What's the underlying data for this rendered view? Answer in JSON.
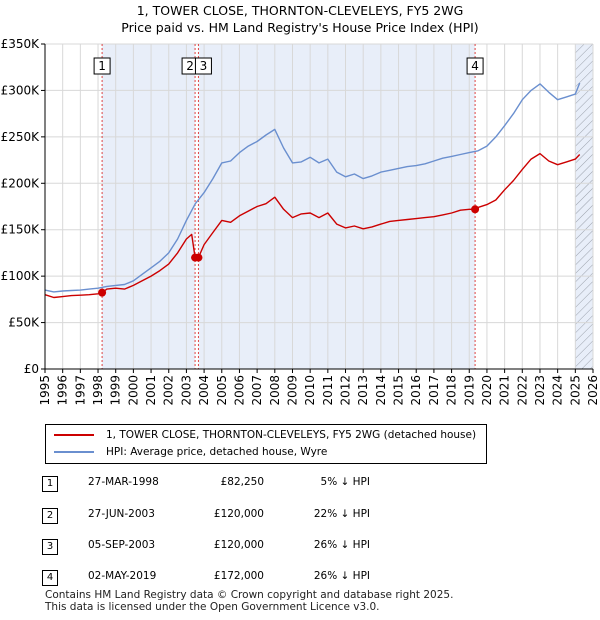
{
  "title_line1": "1, TOWER CLOSE, THORNTON-CLEVELEYS, FY5 2WG",
  "title_line2": "Price paid vs. HM Land Registry's House Price Index (HPI)",
  "colors": {
    "price": "#cc0000",
    "hpi": "#6a8fcf",
    "shade": "#e8eef9",
    "marker": "#cc0000"
  },
  "chart_data": {
    "type": "line",
    "title": "1, TOWER CLOSE, THORNTON-CLEVELEYS, FY5 2WG",
    "subtitle": "Price paid vs. HM Land Registry's House Price Index (HPI)",
    "xlim": [
      1995,
      2026
    ],
    "ylim": [
      0,
      350000
    ],
    "x_ticks": [
      1995,
      1996,
      1997,
      1998,
      1999,
      2000,
      2001,
      2002,
      2003,
      2004,
      2005,
      2006,
      2007,
      2008,
      2009,
      2010,
      2011,
      2012,
      2013,
      2014,
      2015,
      2016,
      2017,
      2018,
      2019,
      2020,
      2021,
      2022,
      2023,
      2024,
      2025,
      2026
    ],
    "y_ticks": [
      {
        "value": 0,
        "label": "£0"
      },
      {
        "value": 50000,
        "label": "£50K"
      },
      {
        "value": 100000,
        "label": "£100K"
      },
      {
        "value": 150000,
        "label": "£150K"
      },
      {
        "value": 200000,
        "label": "£200K"
      },
      {
        "value": 250000,
        "label": "£250K"
      },
      {
        "value": 300000,
        "label": "£300K"
      },
      {
        "value": 350000,
        "label": "£350K"
      }
    ],
    "shaded_periods": [
      [
        1998.23,
        2003.49
      ],
      [
        2003.68,
        2019.33
      ],
      [
        2025.0,
        2026.0
      ]
    ],
    "forecast_start": 2025.0,
    "series": [
      {
        "name": "1, TOWER CLOSE, THORNTON-CLEVELEYS, FY5 2WG (detached house)",
        "color": "#cc0000",
        "x": [
          1995,
          1995.5,
          1996,
          1996.5,
          1997,
          1997.5,
          1998,
          1998.23,
          1998.5,
          1999,
          1999.5,
          2000,
          2000.5,
          2001,
          2001.5,
          2002,
          2002.5,
          2003,
          2003.3,
          2003.49,
          2003.68,
          2004,
          2004.5,
          2005,
          2005.5,
          2006,
          2006.5,
          2007,
          2007.5,
          2008,
          2008.5,
          2009,
          2009.5,
          2010,
          2010.5,
          2011,
          2011.5,
          2012,
          2012.5,
          2013,
          2013.5,
          2014,
          2014.5,
          2015,
          2015.5,
          2016,
          2016.5,
          2017,
          2017.5,
          2018,
          2018.5,
          2019,
          2019.33,
          2019.5,
          2020,
          2020.5,
          2021,
          2021.5,
          2022,
          2022.5,
          2023,
          2023.5,
          2024,
          2024.5,
          2025,
          2025.25
        ],
        "y": [
          80000,
          77000,
          78000,
          79000,
          79500,
          80000,
          81000,
          82250,
          86000,
          87000,
          86000,
          90000,
          95000,
          100000,
          106000,
          113000,
          125000,
          140000,
          145000,
          120000,
          120000,
          134000,
          147000,
          160000,
          158000,
          165000,
          170000,
          175000,
          178000,
          185000,
          172000,
          163000,
          167000,
          168000,
          163000,
          168000,
          156000,
          152000,
          154000,
          151000,
          153000,
          156000,
          159000,
          160000,
          161000,
          162000,
          163000,
          164000,
          166000,
          168000,
          171000,
          172000,
          172000,
          174000,
          177000,
          182000,
          193000,
          203000,
          215000,
          226000,
          232000,
          224000,
          220000,
          223000,
          226000,
          231000
        ]
      },
      {
        "name": "HPI: Average price, detached house, Wyre",
        "color": "#6a8fcf",
        "x": [
          1995,
          1995.5,
          1996,
          1996.5,
          1997,
          1997.5,
          1998,
          1998.5,
          1999,
          1999.5,
          2000,
          2000.5,
          2001,
          2001.5,
          2002,
          2002.5,
          2003,
          2003.5,
          2004,
          2004.5,
          2005,
          2005.5,
          2006,
          2006.5,
          2007,
          2007.5,
          2008,
          2008.5,
          2009,
          2009.5,
          2010,
          2010.5,
          2011,
          2011.5,
          2012,
          2012.5,
          2013,
          2013.5,
          2014,
          2014.5,
          2015,
          2015.5,
          2016,
          2016.5,
          2017,
          2017.5,
          2018,
          2018.5,
          2019,
          2019.5,
          2020,
          2020.5,
          2021,
          2021.5,
          2022,
          2022.5,
          2023,
          2023.5,
          2024,
          2024.5,
          2025,
          2025.25
        ],
        "y": [
          85000,
          83000,
          84000,
          84500,
          85000,
          86000,
          87000,
          89000,
          90000,
          91000,
          95000,
          102000,
          109000,
          116000,
          125000,
          140000,
          160000,
          178000,
          190000,
          205000,
          222000,
          224000,
          233000,
          240000,
          245000,
          252000,
          258000,
          238000,
          222000,
          223000,
          228000,
          222000,
          226000,
          212000,
          207000,
          210000,
          205000,
          208000,
          212000,
          214000,
          216000,
          218000,
          219000,
          221000,
          224000,
          227000,
          229000,
          231000,
          233000,
          235000,
          240000,
          250000,
          262000,
          275000,
          290000,
          300000,
          307000,
          298000,
          290000,
          293000,
          296000,
          308000
        ]
      }
    ],
    "sales": [
      {
        "label": "1",
        "x": 1998.23,
        "y": 82250
      },
      {
        "label": "2",
        "x": 2003.49,
        "y": 120000
      },
      {
        "label": "3",
        "x": 2003.68,
        "y": 120000
      },
      {
        "label": "4",
        "x": 2019.33,
        "y": 172000
      }
    ],
    "box_labels": [
      {
        "label": "1",
        "x": 1998.23
      },
      {
        "label": "2",
        "x": 2003.49
      },
      {
        "label": "3",
        "x": 2003.68
      },
      {
        "label": "4",
        "x": 2019.33
      }
    ]
  },
  "legend": {
    "price_label": "1, TOWER CLOSE, THORNTON-CLEVELEYS, FY5 2WG (detached house)",
    "hpi_label": "HPI: Average price, detached house, Wyre"
  },
  "table": [
    {
      "num": "1",
      "date": "27-MAR-1998",
      "price": "£82,250",
      "hpi": "5% ↓ HPI"
    },
    {
      "num": "2",
      "date": "27-JUN-2003",
      "price": "£120,000",
      "hpi": "22% ↓ HPI"
    },
    {
      "num": "3",
      "date": "05-SEP-2003",
      "price": "£120,000",
      "hpi": "26% ↓ HPI"
    },
    {
      "num": "4",
      "date": "02-MAY-2019",
      "price": "£172,000",
      "hpi": "26% ↓ HPI"
    }
  ],
  "footer_line1": "Contains HM Land Registry data © Crown copyright and database right 2025.",
  "footer_line2": "This data is licensed under the Open Government Licence v3.0."
}
